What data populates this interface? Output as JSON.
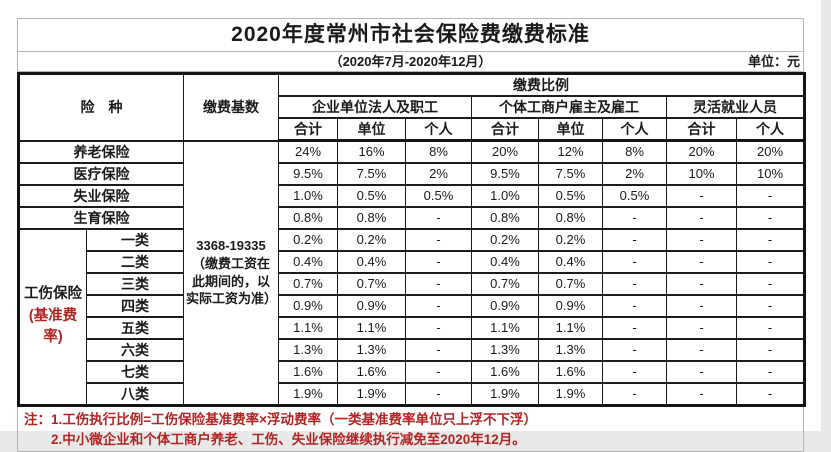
{
  "page": {
    "title": "2020年度常州市社会保险费缴费标准",
    "subtitle": "（2020年7月-2020年12月）",
    "unit_label": "单位：元"
  },
  "table": {
    "headers": {
      "insurance_type": "险　种",
      "payment_base": "缴费基数",
      "payment_ratio": "缴费比例",
      "groups": [
        {
          "label": "企业单位法人及职工",
          "cols": [
            "合计",
            "单位",
            "个人"
          ]
        },
        {
          "label": "个体工商户雇主及雇工",
          "cols": [
            "合计",
            "单位",
            "个人"
          ]
        },
        {
          "label": "灵活就业人员",
          "cols": [
            "合计",
            "个人"
          ]
        }
      ]
    },
    "payment_base_value": "3368-19335\n（缴费工资在此期间的，以实际工资为准）",
    "rows": [
      {
        "name": "养老保险",
        "values": [
          "24%",
          "16%",
          "8%",
          "20%",
          "12%",
          "8%",
          "20%",
          "20%"
        ]
      },
      {
        "name": "医疗保险",
        "values": [
          "9.5%",
          "7.5%",
          "2%",
          "9.5%",
          "7.5%",
          "2%",
          "10%",
          "10%"
        ]
      },
      {
        "name": "失业保险",
        "values": [
          "1.0%",
          "0.5%",
          "0.5%",
          "1.0%",
          "0.5%",
          "0.5%",
          "-",
          "-"
        ]
      },
      {
        "name": "生育保险",
        "values": [
          "0.8%",
          "0.8%",
          "-",
          "0.8%",
          "0.8%",
          "-",
          "-",
          "-"
        ]
      }
    ],
    "injury": {
      "label_black": "工伤保险",
      "label_red": "(基准费率)",
      "classes": [
        {
          "name": "一类",
          "values": [
            "0.2%",
            "0.2%",
            "-",
            "0.2%",
            "0.2%",
            "-",
            "-",
            "-"
          ]
        },
        {
          "name": "二类",
          "values": [
            "0.4%",
            "0.4%",
            "-",
            "0.4%",
            "0.4%",
            "-",
            "-",
            "-"
          ]
        },
        {
          "name": "三类",
          "values": [
            "0.7%",
            "0.7%",
            "-",
            "0.7%",
            "0.7%",
            "-",
            "-",
            "-"
          ]
        },
        {
          "name": "四类",
          "values": [
            "0.9%",
            "0.9%",
            "-",
            "0.9%",
            "0.9%",
            "-",
            "-",
            "-"
          ]
        },
        {
          "name": "五类",
          "values": [
            "1.1%",
            "1.1%",
            "-",
            "1.1%",
            "1.1%",
            "-",
            "-",
            "-"
          ]
        },
        {
          "name": "六类",
          "values": [
            "1.3%",
            "1.3%",
            "-",
            "1.3%",
            "1.3%",
            "-",
            "-",
            "-"
          ]
        },
        {
          "name": "七类",
          "values": [
            "1.6%",
            "1.6%",
            "-",
            "1.6%",
            "1.6%",
            "-",
            "-",
            "-"
          ]
        },
        {
          "name": "八类",
          "values": [
            "1.9%",
            "1.9%",
            "-",
            "1.9%",
            "1.9%",
            "-",
            "-",
            "-"
          ]
        }
      ]
    }
  },
  "notes": [
    "注：1.工伤执行比例=工伤保险基准费率×浮动费率（一类基准费率单位只上浮不下浮）",
    "2.中小微企业和个体工商户养老、工伤、失业保险继续执行减免至2020年12月。"
  ]
}
